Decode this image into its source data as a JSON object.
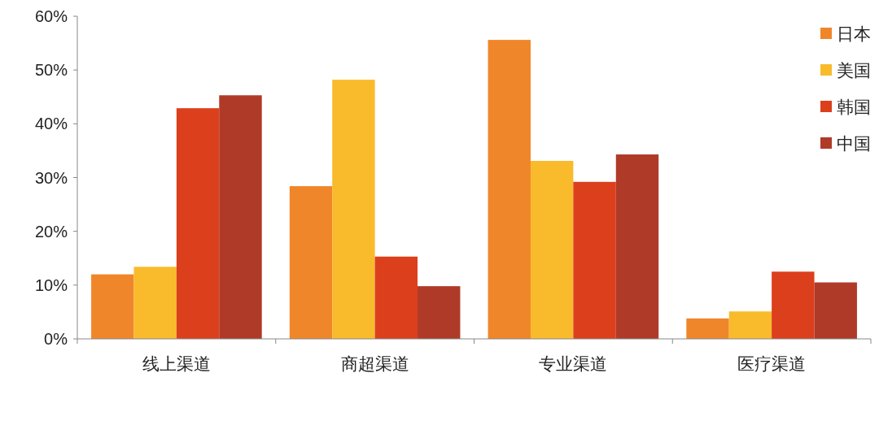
{
  "chart_data": {
    "type": "bar",
    "categories": [
      "线上渠道",
      "商超渠道",
      "专业渠道",
      "医疗渠道"
    ],
    "series": [
      {
        "name": "日本",
        "color": "#f0862a",
        "values": [
          12,
          28.4,
          55.6,
          3.8
        ]
      },
      {
        "name": "美国",
        "color": "#f9bb2c",
        "values": [
          13.4,
          48.2,
          33.1,
          5.1
        ]
      },
      {
        "name": "韩国",
        "color": "#dc3f1c",
        "values": [
          42.9,
          15.3,
          29.2,
          12.5
        ]
      },
      {
        "name": "中国",
        "color": "#b03a28",
        "values": [
          45.3,
          9.8,
          34.3,
          10.5
        ]
      }
    ],
    "ylim": [
      0,
      60
    ],
    "yticks": [
      {
        "value": 0,
        "label": "0%"
      },
      {
        "value": 10,
        "label": "10%"
      },
      {
        "value": 20,
        "label": "20%"
      },
      {
        "value": 30,
        "label": "30%"
      },
      {
        "value": 40,
        "label": "40%"
      },
      {
        "value": 50,
        "label": "50%"
      },
      {
        "value": 60,
        "label": "60%"
      }
    ],
    "grid": false,
    "legend": "top right"
  }
}
